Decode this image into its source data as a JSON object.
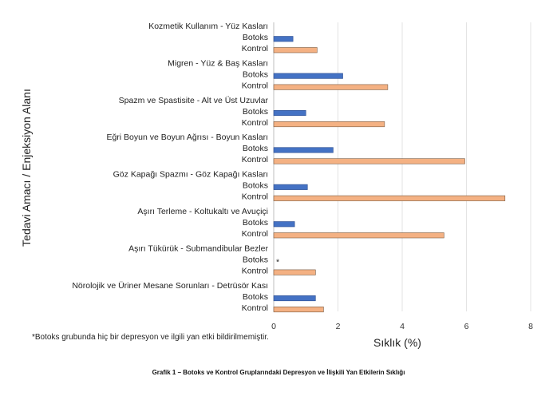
{
  "chart_data": {
    "type": "bar",
    "orientation": "horizontal",
    "ylabel": "Tedavi Amacı / Enjeksiyon Alanı",
    "xlabel": "Sıklık (%)",
    "xlim": [
      0,
      8
    ],
    "xticks": [
      0,
      2,
      4,
      6,
      8
    ],
    "grid": true,
    "groups": [
      {
        "label": "Kozmetik Kullanım - Yüz Kasları",
        "botoks": 0.6,
        "kontrol": 1.35
      },
      {
        "label": "Migren - Yüz & Baş Kasları",
        "botoks": 2.15,
        "kontrol": 3.55
      },
      {
        "label": "Spazm ve Spastisite - Alt ve Üst Uzuvlar",
        "botoks": 1.0,
        "kontrol": 3.45
      },
      {
        "label": "Eğri Boyun ve Boyun Ağrısı - Boyun Kasları",
        "botoks": 1.85,
        "kontrol": 5.95
      },
      {
        "label": "Göz Kapağı Spazmı - Göz Kapağı Kasları",
        "botoks": 1.05,
        "kontrol": 7.2
      },
      {
        "label": "Aşırı Terleme - Koltukaltı ve Avuçiçi",
        "botoks": 0.65,
        "kontrol": 5.3
      },
      {
        "label": "Aşırı Tükürük - Submandibular Bezler",
        "botoks": 0,
        "botoks_marker": "*",
        "kontrol": 1.3
      },
      {
        "label": "Nörolojik ve Üriner Mesane Sorunları - Detrüsör Kası",
        "botoks": 1.3,
        "kontrol": 1.55
      }
    ],
    "series_labels": {
      "botoks": "Botoks",
      "kontrol": "Kontrol"
    },
    "colors": {
      "botoks": "#4472c4",
      "kontrol": "#f4b183",
      "botoks_edge": "#2f4f8f",
      "kontrol_edge": "#7a5a40"
    }
  },
  "footnote": "*Botoks grubunda hiç bir depresyon ve ilgili yan etki bildirilmemiştir.",
  "caption": "Grafik 1 – Botoks ve Kontrol Gruplarındaki Depresyon ve İlişkili Yan Etkilerin Sıklığı"
}
